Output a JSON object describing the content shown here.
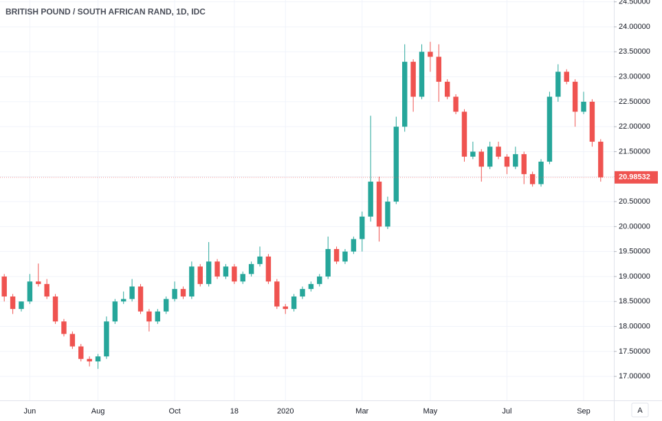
{
  "chart_data": {
    "type": "candlestick",
    "title": "BRITISH POUND / SOUTH AFRICAN RAND, 1D, IDC",
    "x": [
      null,
      null,
      null,
      "Jun",
      null,
      null,
      null,
      null,
      null,
      null,
      null,
      "Aug",
      null,
      null,
      null,
      null,
      null,
      null,
      null,
      null,
      "Oct",
      null,
      null,
      null,
      null,
      null,
      null,
      "18",
      null,
      null,
      null,
      null,
      null,
      "2020",
      null,
      null,
      null,
      null,
      null,
      null,
      null,
      null,
      "Mar",
      null,
      null,
      null,
      null,
      null,
      null,
      null,
      "May",
      null,
      null,
      null,
      null,
      null,
      null,
      null,
      null,
      "Jul",
      null,
      null,
      null,
      null,
      null,
      null,
      null,
      null,
      "Sep",
      null,
      null
    ],
    "open": [
      19.0,
      18.6,
      18.35,
      18.5,
      18.9,
      18.85,
      18.6,
      18.1,
      17.85,
      17.6,
      17.35,
      17.3,
      17.4,
      18.1,
      18.5,
      18.55,
      18.8,
      18.3,
      18.1,
      18.3,
      18.55,
      18.75,
      18.6,
      19.2,
      18.85,
      19.3,
      19.0,
      19.2,
      18.9,
      19.05,
      19.25,
      19.4,
      18.9,
      18.4,
      18.35,
      18.6,
      18.75,
      18.85,
      19.0,
      19.55,
      19.3,
      19.5,
      19.75,
      20.2,
      20.9,
      20.0,
      20.5,
      22.0,
      23.3,
      22.6,
      23.5,
      23.4,
      22.9,
      22.6,
      22.3,
      21.4,
      21.5,
      21.2,
      21.6,
      21.4,
      21.2,
      21.45,
      21.05,
      20.85,
      21.3,
      22.6,
      23.1,
      22.9,
      22.3,
      22.5,
      21.7
    ],
    "high": [
      19.05,
      18.65,
      18.5,
      19.05,
      19.26,
      18.95,
      18.65,
      18.15,
      17.9,
      17.65,
      17.4,
      17.45,
      18.2,
      18.55,
      18.7,
      18.95,
      18.85,
      18.35,
      18.35,
      18.6,
      18.9,
      18.8,
      19.3,
      19.25,
      19.69,
      19.35,
      19.25,
      19.25,
      19.1,
      19.3,
      19.6,
      19.45,
      18.95,
      18.45,
      18.65,
      18.8,
      18.9,
      19.05,
      19.8,
      19.6,
      19.55,
      19.8,
      20.3,
      22.22,
      21.0,
      20.6,
      22.2,
      23.65,
      23.35,
      23.65,
      23.7,
      23.65,
      22.95,
      22.65,
      22.35,
      21.7,
      21.55,
      21.7,
      21.7,
      21.45,
      21.6,
      21.5,
      21.1,
      21.35,
      22.7,
      23.25,
      23.15,
      22.95,
      22.7,
      22.55,
      21.75
    ],
    "low": [
      18.5,
      18.25,
      18.3,
      18.45,
      18.8,
      18.55,
      18.05,
      17.8,
      17.55,
      17.3,
      17.2,
      17.15,
      17.35,
      18.05,
      18.45,
      18.5,
      18.25,
      17.9,
      18.05,
      18.25,
      18.5,
      18.55,
      18.55,
      18.8,
      18.8,
      18.95,
      18.95,
      18.85,
      18.85,
      19.0,
      19.2,
      18.85,
      18.35,
      18.25,
      18.3,
      18.55,
      18.7,
      18.8,
      18.95,
      19.25,
      19.25,
      19.45,
      19.5,
      20.1,
      19.7,
      19.95,
      20.45,
      21.9,
      22.3,
      22.55,
      23.1,
      22.5,
      22.55,
      22.25,
      21.3,
      21.35,
      20.9,
      21.15,
      21.35,
      21.05,
      21.15,
      20.85,
      20.8,
      20.8,
      21.25,
      22.5,
      22.85,
      22.0,
      22.25,
      21.6,
      20.9
    ],
    "close": [
      18.6,
      18.35,
      18.5,
      18.9,
      18.85,
      18.6,
      18.1,
      17.85,
      17.6,
      17.35,
      17.3,
      17.4,
      18.1,
      18.5,
      18.55,
      18.8,
      18.3,
      18.1,
      18.3,
      18.55,
      18.75,
      18.6,
      19.2,
      18.85,
      19.3,
      19.0,
      19.2,
      18.9,
      19.05,
      19.25,
      19.4,
      18.9,
      18.4,
      18.35,
      18.6,
      18.75,
      18.85,
      19.0,
      19.55,
      19.3,
      19.5,
      19.75,
      20.2,
      20.9,
      20.0,
      20.5,
      22.0,
      23.3,
      22.6,
      23.5,
      23.4,
      22.9,
      22.6,
      22.3,
      21.4,
      21.5,
      21.2,
      21.6,
      21.4,
      21.2,
      21.45,
      21.05,
      20.85,
      21.3,
      22.6,
      23.1,
      22.9,
      22.3,
      22.5,
      21.7,
      20.98532
    ],
    "up_color": "#26a69a",
    "down_color": "#ef5350",
    "ylim": [
      16.52,
      24.537
    ],
    "yticks": [
      {
        "value": 17.0,
        "label": "17.00000"
      },
      {
        "value": 17.5,
        "label": "17.50000"
      },
      {
        "value": 18.0,
        "label": "18.00000"
      },
      {
        "value": 18.5,
        "label": "18.50000"
      },
      {
        "value": 19.0,
        "label": "19.00000"
      },
      {
        "value": 19.5,
        "label": "19.50000"
      },
      {
        "value": 20.0,
        "label": "20.00000"
      },
      {
        "value": 20.5,
        "label": "20.50000"
      },
      {
        "value": 21.0,
        "label": "21.00000"
      },
      {
        "value": 21.5,
        "label": "21.50000"
      },
      {
        "value": 22.0,
        "label": "22.00000"
      },
      {
        "value": 22.5,
        "label": "22.50000"
      },
      {
        "value": 23.0,
        "label": "23.00000"
      },
      {
        "value": 23.5,
        "label": "23.50000"
      },
      {
        "value": 24.0,
        "label": "24.00000"
      },
      {
        "value": 24.5,
        "label": "24.50000"
      }
    ],
    "grid": true,
    "autoscale_button": "A"
  }
}
